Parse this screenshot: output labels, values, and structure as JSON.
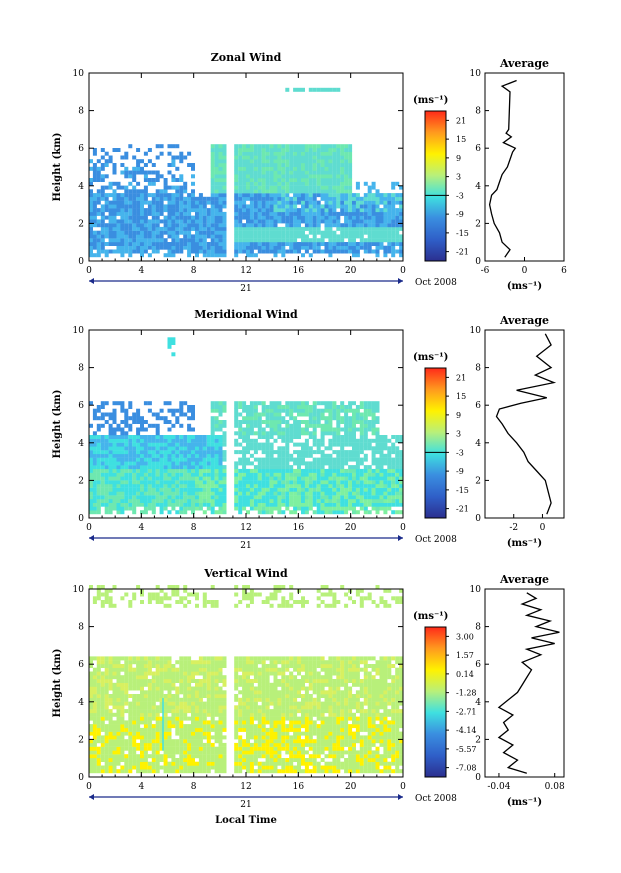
{
  "figure": {
    "xlabel": "Local Time",
    "date_label": "Oct 2008",
    "day_label": "21",
    "avg_title": "Average",
    "ylabel": "Height (km)",
    "unit_label": "(ms⁻¹)",
    "colors": {
      "low": "#2b2f8f",
      "mid_blue": "#3a8ee0",
      "cyan": "#3fe0e0",
      "light": "#b8f07a",
      "yellow": "#fff200",
      "orange": "#ff9a1e",
      "high": "#ff2a1a"
    }
  },
  "chart_data": [
    {
      "type": "heatmap",
      "title": "Zonal Wind",
      "xlim": [
        0,
        24
      ],
      "ylim": [
        0,
        10
      ],
      "xticks": [
        "0",
        "4",
        "8",
        "12",
        "16",
        "20",
        "0"
      ],
      "yticks": [
        "0",
        "2",
        "4",
        "6",
        "8",
        "10"
      ],
      "colorbar": {
        "ticks": [
          "-21",
          "-15",
          "-9",
          "-3",
          "3",
          "9",
          "15",
          "21"
        ]
      },
      "average": {
        "xlim": [
          -6,
          6
        ],
        "xticks": [
          "-6",
          "0",
          "6"
        ],
        "xunit": "(ms⁻¹)",
        "profile": {
          "height": [
            0.2,
            0.6,
            1.0,
            1.5,
            2.0,
            2.5,
            3.0,
            3.5,
            3.8,
            4.2,
            4.6,
            5.0,
            5.4,
            5.8,
            6.0,
            6.3,
            6.6,
            6.8,
            7.0,
            9.0,
            9.3,
            9.6
          ],
          "value": [
            -3.0,
            -2.2,
            -3.4,
            -3.8,
            -4.6,
            -5.0,
            -5.3,
            -5.0,
            -4.2,
            -3.8,
            -3.4,
            -2.6,
            -2.2,
            -1.8,
            -1.4,
            -3.2,
            -2.0,
            -2.8,
            -2.4,
            -2.2,
            -3.4,
            -1.2
          ]
        }
      }
    },
    {
      "type": "heatmap",
      "title": "Meridional Wind",
      "xlim": [
        0,
        24
      ],
      "ylim": [
        0,
        10
      ],
      "xticks": [
        "0",
        "4",
        "8",
        "12",
        "16",
        "20",
        "0"
      ],
      "yticks": [
        "0",
        "2",
        "4",
        "6",
        "8",
        "10"
      ],
      "colorbar": {
        "ticks": [
          "-21",
          "-15",
          "-9",
          "-3",
          "3",
          "9",
          "15",
          "21"
        ]
      },
      "average": {
        "xlim": [
          -4,
          1.5
        ],
        "xticks": [
          "-2",
          "0"
        ],
        "xunit": "(ms⁻¹)",
        "profile": {
          "height": [
            0.2,
            0.8,
            1.4,
            2.0,
            2.5,
            3.0,
            3.5,
            4.0,
            4.5,
            5.0,
            5.4,
            5.8,
            6.1,
            6.4,
            6.8,
            7.2,
            7.6,
            8.0,
            8.6,
            9.2,
            9.8
          ],
          "value": [
            0.3,
            0.6,
            0.4,
            0.2,
            -0.4,
            -1.0,
            -1.3,
            -1.8,
            -2.4,
            -2.8,
            -3.2,
            -3.0,
            -1.5,
            0.3,
            -1.8,
            0.8,
            -0.5,
            0.6,
            -0.4,
            0.6,
            0.2
          ]
        }
      }
    },
    {
      "type": "heatmap",
      "title": "Vertical Wind",
      "xlim": [
        0,
        24
      ],
      "ylim": [
        0,
        10
      ],
      "xticks": [
        "0",
        "4",
        "8",
        "12",
        "16",
        "20",
        "0"
      ],
      "yticks": [
        "0",
        "2",
        "4",
        "6",
        "8",
        "10"
      ],
      "colorbar": {
        "ticks": [
          "-7.08",
          "-5.57",
          "-4.14",
          "-2.71",
          "-1.28",
          "0.14",
          "1.57",
          "3.00"
        ]
      },
      "average": {
        "xlim": [
          -0.07,
          0.1
        ],
        "xticks": [
          "-0.04",
          "0.08"
        ],
        "xunit": "(ms⁻¹)",
        "profile": {
          "height": [
            0.2,
            0.5,
            0.9,
            1.3,
            1.7,
            2.1,
            2.5,
            2.9,
            3.3,
            3.7,
            4.1,
            4.5,
            4.9,
            5.3,
            5.7,
            6.1,
            6.5,
            6.8,
            7.1,
            7.4,
            7.7,
            8.0,
            8.3,
            8.6,
            8.9,
            9.2,
            9.5,
            9.8
          ],
          "value": [
            0.02,
            -0.02,
            0.0,
            -0.03,
            -0.01,
            -0.04,
            -0.02,
            -0.03,
            -0.01,
            -0.04,
            -0.02,
            0.0,
            0.01,
            0.02,
            0.03,
            0.01,
            0.05,
            0.02,
            0.08,
            0.03,
            0.09,
            0.04,
            0.07,
            0.02,
            0.05,
            0.01,
            0.04,
            0.02
          ]
        }
      }
    }
  ]
}
